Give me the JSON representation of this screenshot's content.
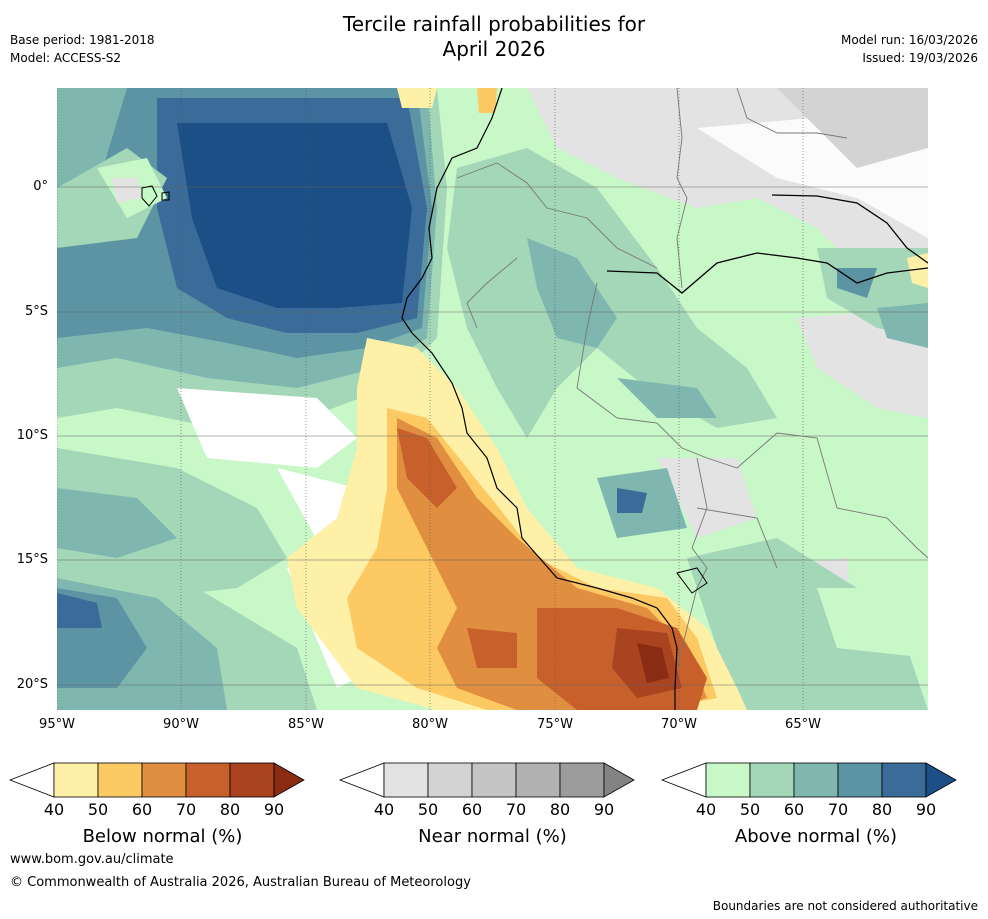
{
  "header": {
    "title_line1": "Tercile rainfall probabilities for",
    "title_line2": "April 2026",
    "base_period": "Base period: 1981-2018",
    "model": "Model: ACCESS-S2",
    "model_run": "Model run: 16/03/2026",
    "issued": "Issued: 19/03/2026"
  },
  "map": {
    "lat_labels": [
      "0°",
      "5°S",
      "10°S",
      "15°S",
      "20°S"
    ],
    "lon_labels": [
      "95°W",
      "90°W",
      "85°W",
      "80°W",
      "75°W",
      "70°W",
      "65°W"
    ],
    "colors": {
      "ocean_green1": "#c8f7c8",
      "ocean_green2": "#a3d7b7",
      "teal3": "#7fb7b0",
      "teal4": "#5c94a3",
      "blue5": "#3a6b99",
      "blue6": "#1b4f85"
    }
  },
  "colorbars": [
    {
      "name": "Below normal (%)",
      "ticks": [
        "40",
        "50",
        "60",
        "70",
        "80",
        "90"
      ],
      "colors": [
        "#fff0a8",
        "#fdc962",
        "#e08f40",
        "#c8602c",
        "#aa4420",
        "#8a2c14"
      ]
    },
    {
      "name": "Near normal (%)",
      "ticks": [
        "40",
        "50",
        "60",
        "70",
        "80",
        "90"
      ],
      "colors": [
        "#e3e3e3",
        "#d3d3d3",
        "#c5c5c5",
        "#b1b1b1",
        "#9c9c9c",
        "#838383"
      ]
    },
    {
      "name": "Above normal (%)",
      "ticks": [
        "40",
        "50",
        "60",
        "70",
        "80",
        "90"
      ],
      "colors": [
        "#c8f7c8",
        "#a3d7b7",
        "#7fb7b0",
        "#5c94a3",
        "#3a6b99",
        "#1b4f85"
      ]
    }
  ],
  "footer": {
    "url": "www.bom.gov.au/climate",
    "copyright": "© Commonwealth of Australia 2026, Australian Bureau of Meteorology",
    "disclaimer": "Boundaries are not considered authoritative"
  }
}
